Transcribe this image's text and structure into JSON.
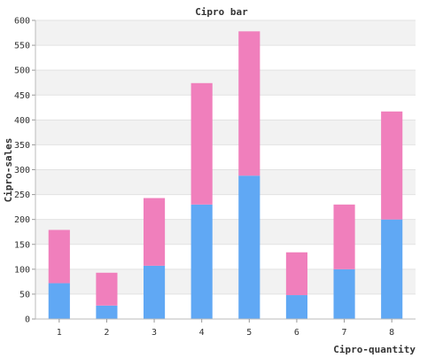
{
  "chart_data": {
    "type": "bar",
    "stacked": true,
    "title": "Cipro bar",
    "xlabel": "Cipro-quantity",
    "ylabel": "Cipro-sales",
    "categories": [
      "1",
      "2",
      "3",
      "4",
      "5",
      "6",
      "7",
      "8"
    ],
    "series": [
      {
        "values": [
          72,
          27,
          107,
          230,
          288,
          48,
          100,
          200
        ],
        "color": "#60a8f4"
      },
      {
        "values": [
          107,
          66,
          136,
          244,
          290,
          86,
          130,
          217
        ],
        "color": "#f07fbc"
      }
    ],
    "ylim": [
      0,
      600
    ],
    "yticks": [
      0,
      50,
      100,
      150,
      200,
      250,
      300,
      350,
      400,
      450,
      500,
      550,
      600
    ],
    "grid": true,
    "band_colors": [
      "#f2f2f2",
      "#ffffff"
    ]
  }
}
